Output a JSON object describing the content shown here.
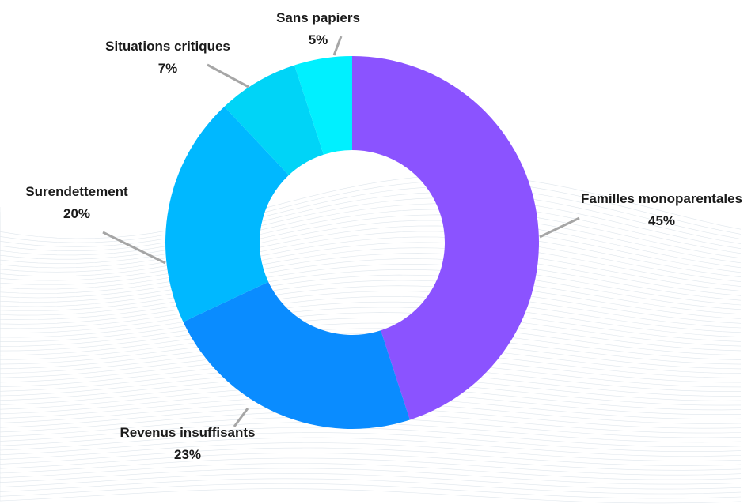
{
  "chart_data": {
    "type": "pie",
    "variant": "donut",
    "legend": "none",
    "slices": [
      {
        "label": "Familles monoparentales",
        "value": 45,
        "value_text": "45%",
        "color": "#8b53ff"
      },
      {
        "label": "Revenus insuffisants",
        "value": 23,
        "value_text": "23%",
        "color": "#0a8cff"
      },
      {
        "label": "Surendettement",
        "value": 20,
        "value_text": "20%",
        "color": "#00b8ff"
      },
      {
        "label": "Situations critiques",
        "value": 7,
        "value_text": "7%",
        "color": "#00d4f7"
      },
      {
        "label": "Sans papiers",
        "value": 5,
        "value_text": "5%",
        "color": "#00f0ff"
      }
    ]
  }
}
